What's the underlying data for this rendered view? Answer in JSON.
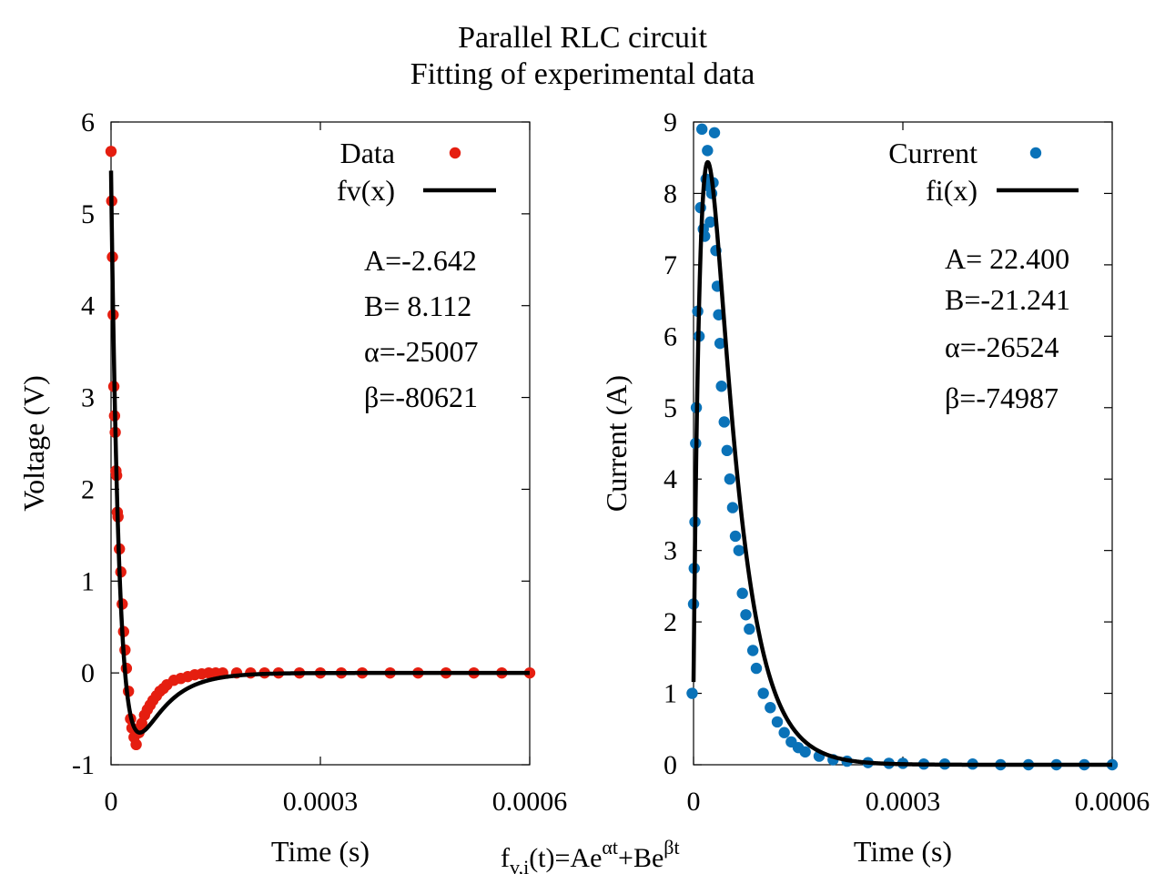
{
  "title": [
    "Parallel RLC circuit",
    "Fitting of experimental data"
  ],
  "formula": {
    "lhs": "f",
    "sub": "v,i",
    "mid": "(t)=Ae",
    "sup1": "αt",
    "plus": "+Be",
    "sup2": "βt"
  },
  "colors": {
    "voltage": "#e51e10",
    "current": "#0a72b8",
    "fit": "#000000"
  },
  "chart_data": [
    {
      "type": "scatter",
      "xlabel": "Time (s)",
      "ylabel": "Voltage (V)",
      "xlim": [
        0,
        0.0006
      ],
      "ylim": [
        -1,
        6
      ],
      "xticks": [
        "0",
        "0.0003",
        "0.0006"
      ],
      "yticks": [
        "-1",
        "0",
        "1",
        "2",
        "3",
        "4",
        "5",
        "6"
      ],
      "legend_position": "top-right",
      "series": [
        {
          "name": "Data",
          "kind": "points",
          "color": "#e51e10"
        },
        {
          "name": "fv(x)",
          "kind": "line",
          "color": "#000000"
        }
      ],
      "params": {
        "A": -2.642,
        "B": 8.112,
        "alpha": -25007,
        "beta": -80621
      },
      "param_labels": [
        "A=-2.642",
        "B= 8.112",
        "α=-25007",
        "β=-80621"
      ],
      "data_x": [
        0,
        1e-06,
        2e-06,
        3e-06,
        4e-06,
        5e-06,
        6e-06,
        7e-06,
        8e-06,
        9e-06,
        1e-05,
        1.2e-05,
        1.4e-05,
        1.6e-05,
        1.8e-05,
        2e-05,
        2.2e-05,
        2.5e-05,
        2.8e-05,
        3e-05,
        3.3e-05,
        3.6e-05,
        4e-05,
        4.4e-05,
        4.8e-05,
        5.2e-05,
        5.6e-05,
        6e-05,
        6.5e-05,
        7e-05,
        7.5e-05,
        8e-05,
        9e-05,
        0.0001,
        0.00011,
        0.00012,
        0.00013,
        0.00014,
        0.00015,
        0.00016,
        0.00018,
        0.0002,
        0.00022,
        0.00024,
        0.00027,
        0.0003,
        0.00033,
        0.00036,
        0.0004,
        0.00044,
        0.00048,
        0.00052,
        0.00056,
        0.0006
      ],
      "data_y": [
        5.68,
        5.14,
        4.53,
        3.9,
        3.12,
        2.8,
        2.62,
        2.2,
        2.15,
        1.75,
        1.7,
        1.35,
        1.1,
        0.75,
        0.45,
        0.25,
        0.05,
        -0.2,
        -0.5,
        -0.6,
        -0.7,
        -0.78,
        -0.65,
        -0.55,
        -0.46,
        -0.4,
        -0.35,
        -0.3,
        -0.25,
        -0.2,
        -0.17,
        -0.13,
        -0.08,
        -0.06,
        -0.04,
        -0.02,
        -0.01,
        0,
        0,
        0,
        0,
        0,
        0,
        0,
        0,
        0,
        0,
        0,
        0,
        0,
        0,
        0,
        0,
        0
      ]
    },
    {
      "type": "scatter",
      "xlabel": "Time (s)",
      "ylabel": "Current (A)",
      "xlim": [
        0,
        0.0006
      ],
      "ylim": [
        0,
        9
      ],
      "xticks": [
        "0",
        "0.0003",
        "0.0006"
      ],
      "yticks": [
        "0",
        "1",
        "2",
        "3",
        "4",
        "5",
        "6",
        "7",
        "8",
        "9"
      ],
      "legend_position": "top-right",
      "series": [
        {
          "name": "Current",
          "kind": "points",
          "color": "#0a72b8"
        },
        {
          "name": "fi(x)",
          "kind": "line",
          "color": "#000000"
        }
      ],
      "params": {
        "A": 22.4,
        "B": -21.241,
        "alpha": -26524,
        "beta": -74987
      },
      "param_labels": [
        "A= 22.400",
        "B=-21.241",
        "α=-26524",
        "β=-74987"
      ],
      "data_x": [
        -2e-06,
        0,
        1e-06,
        2e-06,
        3e-06,
        4e-06,
        6e-06,
        8e-06,
        1e-05,
        1.2e-05,
        1.4e-05,
        1.6e-05,
        1.8e-05,
        2e-05,
        2.2e-05,
        2.4e-05,
        2.6e-05,
        2.8e-05,
        3e-05,
        3.2e-05,
        3.4e-05,
        3.6e-05,
        3.8e-05,
        4e-05,
        4.4e-05,
        4.8e-05,
        5.2e-05,
        5.6e-05,
        6e-05,
        6.5e-05,
        7e-05,
        7.5e-05,
        8e-05,
        8.5e-05,
        9e-05,
        0.0001,
        0.00011,
        0.00012,
        0.00013,
        0.00014,
        0.00015,
        0.00016,
        0.00018,
        0.0002,
        0.00022,
        0.00025,
        0.00028,
        0.0003,
        0.00033,
        0.00036,
        0.0004,
        0.00044,
        0.00048,
        0.00052,
        0.00056,
        0.0006
      ],
      "data_y": [
        1.0,
        2.25,
        2.75,
        3.4,
        4.5,
        5.0,
        6.35,
        6.0,
        7.8,
        8.9,
        7.5,
        7.4,
        8.2,
        8.6,
        8.1,
        7.6,
        8.0,
        8.15,
        8.85,
        7.2,
        6.7,
        6.3,
        5.9,
        5.3,
        4.8,
        4.4,
        4.0,
        3.6,
        3.2,
        3.0,
        2.4,
        2.1,
        1.9,
        1.6,
        1.35,
        1.0,
        0.8,
        0.6,
        0.45,
        0.32,
        0.24,
        0.18,
        0.12,
        0.07,
        0.05,
        0.03,
        0.02,
        0.02,
        0.01,
        0.01,
        0.01,
        0,
        0,
        0,
        0,
        0
      ]
    }
  ]
}
